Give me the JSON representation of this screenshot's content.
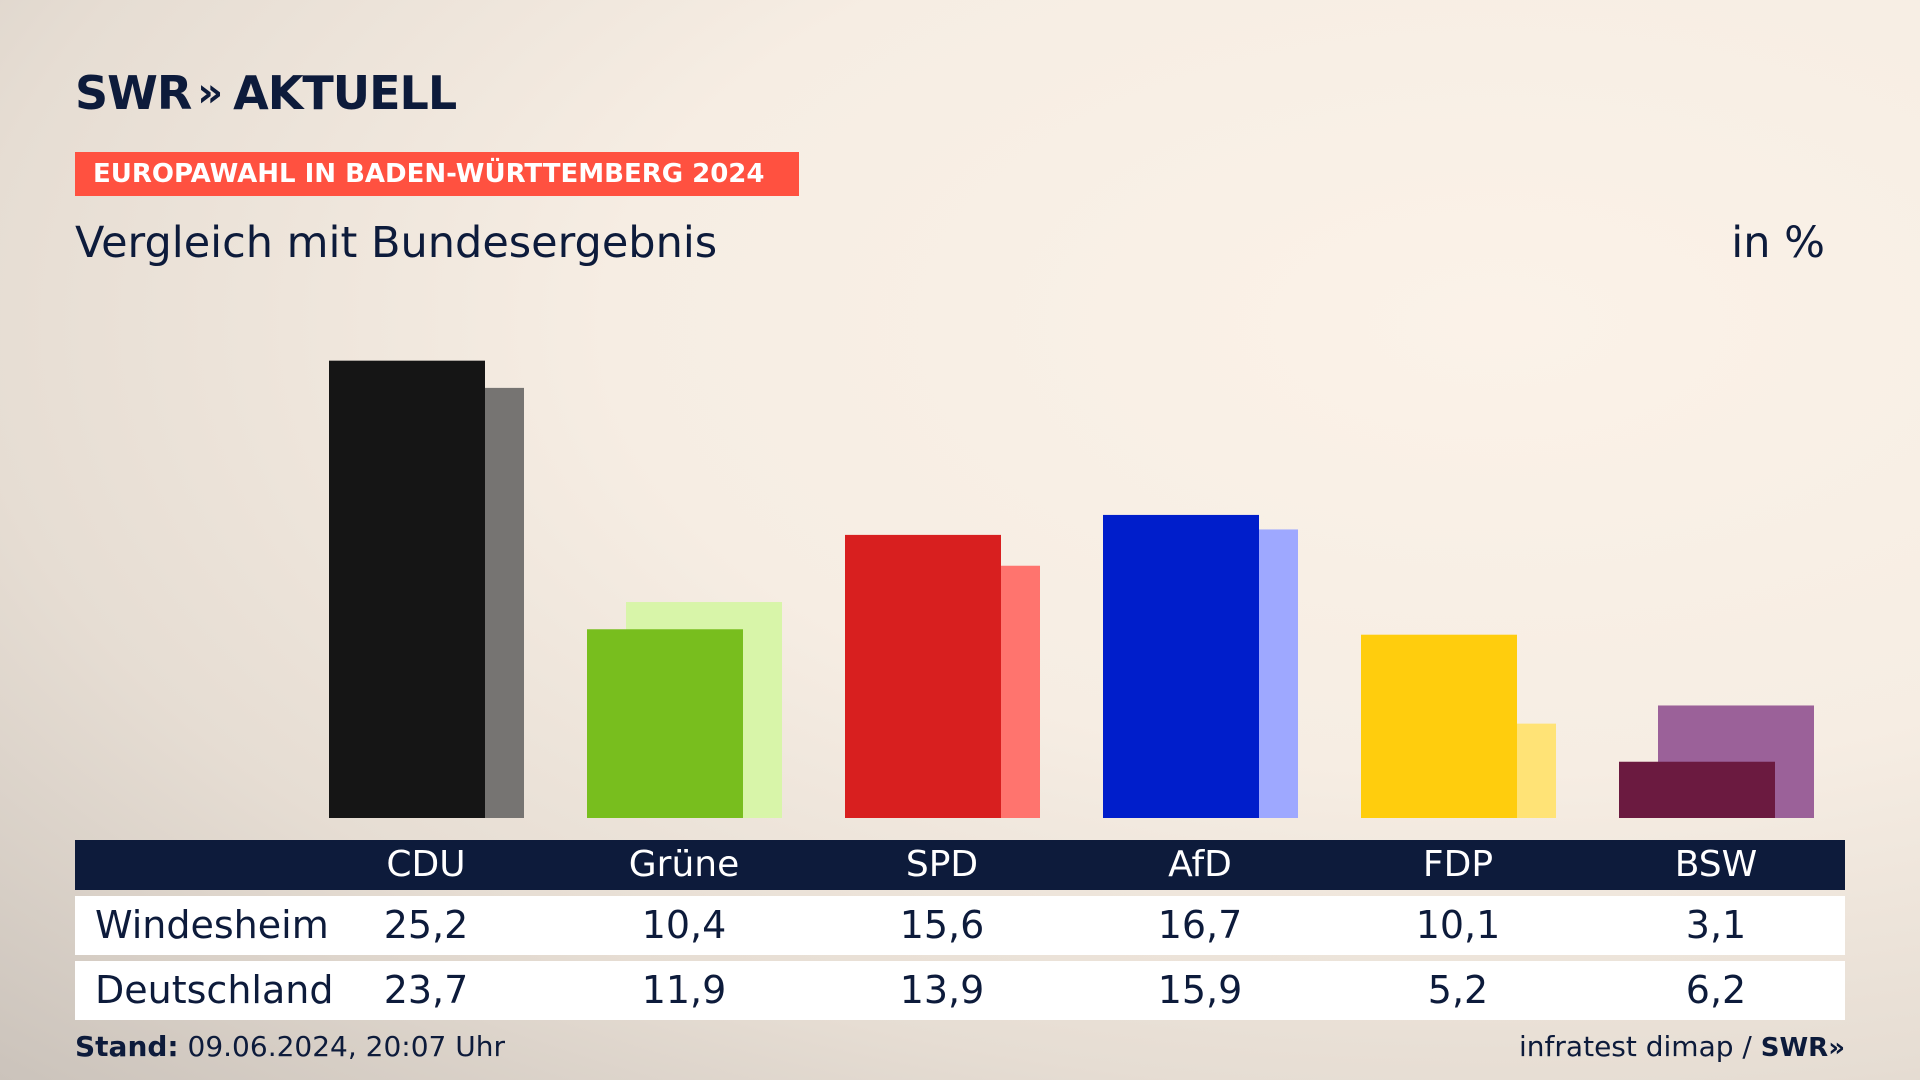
{
  "header": {
    "logo_text": "SWR",
    "logo_chevrons": "»",
    "logo_suffix": "AKTUELL",
    "banner": "EUROPAWAHL IN BADEN-WÜRTTEMBERG 2024",
    "subtitle": "Vergleich mit Bundesergebnis",
    "unit": "in %"
  },
  "chart_data": {
    "type": "bar",
    "categories": [
      "CDU",
      "Grüne",
      "SPD",
      "AfD",
      "FDP",
      "BSW"
    ],
    "series": [
      {
        "name": "Windesheim",
        "values": [
          25.2,
          10.4,
          15.6,
          16.7,
          10.1,
          3.1
        ]
      },
      {
        "name": "Deutschland",
        "values": [
          23.7,
          11.9,
          13.9,
          15.9,
          5.2,
          6.2
        ]
      }
    ],
    "colors_primary": [
      "#151515",
      "#78be1e",
      "#d81f1f",
      "#001ecb",
      "#ffcd0d",
      "#6b1a40"
    ],
    "colors_secondary": [
      "#767472",
      "#d8f5a9",
      "#ff746e",
      "#9ea8ff",
      "#ffe376",
      "#9b6199"
    ],
    "ylim": [
      0,
      27
    ]
  },
  "table": {
    "headers": [
      "CDU",
      "Grüne",
      "SPD",
      "AfD",
      "FDP",
      "BSW"
    ],
    "rows": [
      {
        "label": "Windesheim",
        "values": [
          "25,2",
          "10,4",
          "15,6",
          "16,7",
          "10,1",
          "3,1"
        ]
      },
      {
        "label": "Deutschland",
        "values": [
          "23,7",
          "11,9",
          "13,9",
          "15,9",
          "5,2",
          "6,2"
        ]
      }
    ]
  },
  "footer": {
    "stand_label": "Stand:",
    "stand_value": "09.06.2024, 20:07 Uhr",
    "source": "infratest dimap /",
    "source_logo": "SWR»"
  }
}
